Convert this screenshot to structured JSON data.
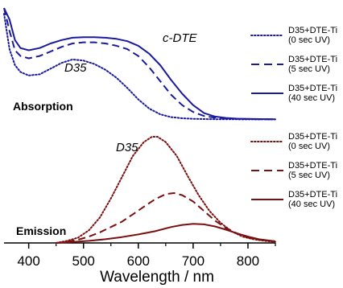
{
  "chart_data": {
    "type": "line",
    "xlabel": "Wavelength / nm",
    "xlim": [
      355,
      850
    ],
    "xticks": [
      400,
      500,
      600,
      700,
      800
    ],
    "colors": {
      "absorption": "#1a1aa0",
      "emission": "#7a1010",
      "axis": "#000000"
    },
    "panels": [
      {
        "label": "Absorption",
        "annotations": [
          "D35",
          "c-DTE"
        ],
        "legend": [
          {
            "line1": "D35+DTE-Ti",
            "line2": "(0 sec UV)",
            "style": "dotted"
          },
          {
            "line1": "D35+DTE-Ti",
            "line2": "(5 sec UV)",
            "style": "dashed"
          },
          {
            "line1": "D35+DTE-Ti",
            "line2": "(40 sec UV)",
            "style": "solid"
          }
        ],
        "series": [
          {
            "style": "dotted",
            "x": [
              355,
              365,
              375,
              385,
              400,
              420,
              440,
              460,
              480,
              500,
              520,
              540,
              560,
              580,
              600,
              620,
              640,
              660,
              680,
              700,
              720,
              740,
              760,
              780,
              800,
              820,
              850
            ],
            "y": [
              0.95,
              0.64,
              0.5,
              0.44,
              0.41,
              0.42,
              0.47,
              0.52,
              0.55,
              0.54,
              0.51,
              0.46,
              0.39,
              0.3,
              0.2,
              0.12,
              0.07,
              0.045,
              0.035,
              0.03,
              0.028,
              0.027,
              0.026,
              0.026,
              0.025,
              0.025,
              0.025
            ]
          },
          {
            "style": "dashed",
            "x": [
              355,
              365,
              375,
              385,
              400,
              420,
              440,
              460,
              480,
              500,
              520,
              540,
              560,
              580,
              600,
              620,
              640,
              660,
              680,
              700,
              720,
              740,
              760,
              780,
              800,
              820,
              850
            ],
            "y": [
              1.0,
              0.8,
              0.63,
              0.58,
              0.56,
              0.58,
              0.62,
              0.66,
              0.69,
              0.7,
              0.7,
              0.69,
              0.67,
              0.64,
              0.58,
              0.48,
              0.36,
              0.24,
              0.15,
              0.09,
              0.055,
              0.04,
              0.035,
              0.03,
              0.028,
              0.027,
              0.026
            ]
          },
          {
            "style": "solid",
            "x": [
              355,
              365,
              375,
              385,
              400,
              420,
              440,
              460,
              480,
              500,
              520,
              540,
              560,
              580,
              600,
              620,
              640,
              660,
              680,
              700,
              720,
              740,
              760,
              780,
              800,
              820,
              850
            ],
            "y": [
              1.0,
              0.9,
              0.72,
              0.65,
              0.63,
              0.65,
              0.69,
              0.72,
              0.74,
              0.745,
              0.745,
              0.74,
              0.73,
              0.71,
              0.67,
              0.6,
              0.5,
              0.37,
              0.25,
              0.15,
              0.08,
              0.05,
              0.038,
              0.032,
              0.03,
              0.028,
              0.027
            ]
          }
        ]
      },
      {
        "label": "Emission",
        "annotations": [
          "D35"
        ],
        "legend": [
          {
            "line1": "D35+DTE-Ti",
            "line2": "(0 sec UV)",
            "style": "dotted"
          },
          {
            "line1": "D35+DTE-Ti",
            "line2": "(5 sec UV)",
            "style": "dashed"
          },
          {
            "line1": "D35+DTE-Ti",
            "line2": "(40 sec UV)",
            "style": "solid"
          }
        ],
        "series": [
          {
            "style": "dotted",
            "x": [
              450,
              470,
              490,
              510,
              530,
              550,
              570,
              590,
              610,
              625,
              635,
              650,
              670,
              690,
              710,
              730,
              750,
              770,
              790,
              810,
              830,
              850
            ],
            "y": [
              0.0,
              0.02,
              0.05,
              0.12,
              0.24,
              0.42,
              0.62,
              0.82,
              0.95,
              1.0,
              1.0,
              0.95,
              0.82,
              0.63,
              0.45,
              0.3,
              0.19,
              0.11,
              0.06,
              0.035,
              0.02,
              0.01
            ]
          },
          {
            "style": "dashed",
            "x": [
              450,
              470,
              490,
              510,
              530,
              550,
              570,
              590,
              610,
              630,
              650,
              665,
              680,
              700,
              720,
              740,
              760,
              780,
              800,
              820,
              850
            ],
            "y": [
              0.0,
              0.01,
              0.03,
              0.06,
              0.1,
              0.15,
              0.2,
              0.27,
              0.34,
              0.41,
              0.46,
              0.47,
              0.45,
              0.39,
              0.3,
              0.21,
              0.14,
              0.09,
              0.05,
              0.03,
              0.015
            ]
          },
          {
            "style": "solid",
            "x": [
              450,
              480,
              510,
              540,
              570,
              600,
              630,
              660,
              680,
              700,
              720,
              740,
              760,
              780,
              800,
              820,
              850
            ],
            "y": [
              0.0,
              0.01,
              0.02,
              0.035,
              0.055,
              0.08,
              0.11,
              0.15,
              0.17,
              0.18,
              0.175,
              0.155,
              0.125,
              0.09,
              0.06,
              0.035,
              0.015
            ]
          }
        ]
      }
    ]
  }
}
